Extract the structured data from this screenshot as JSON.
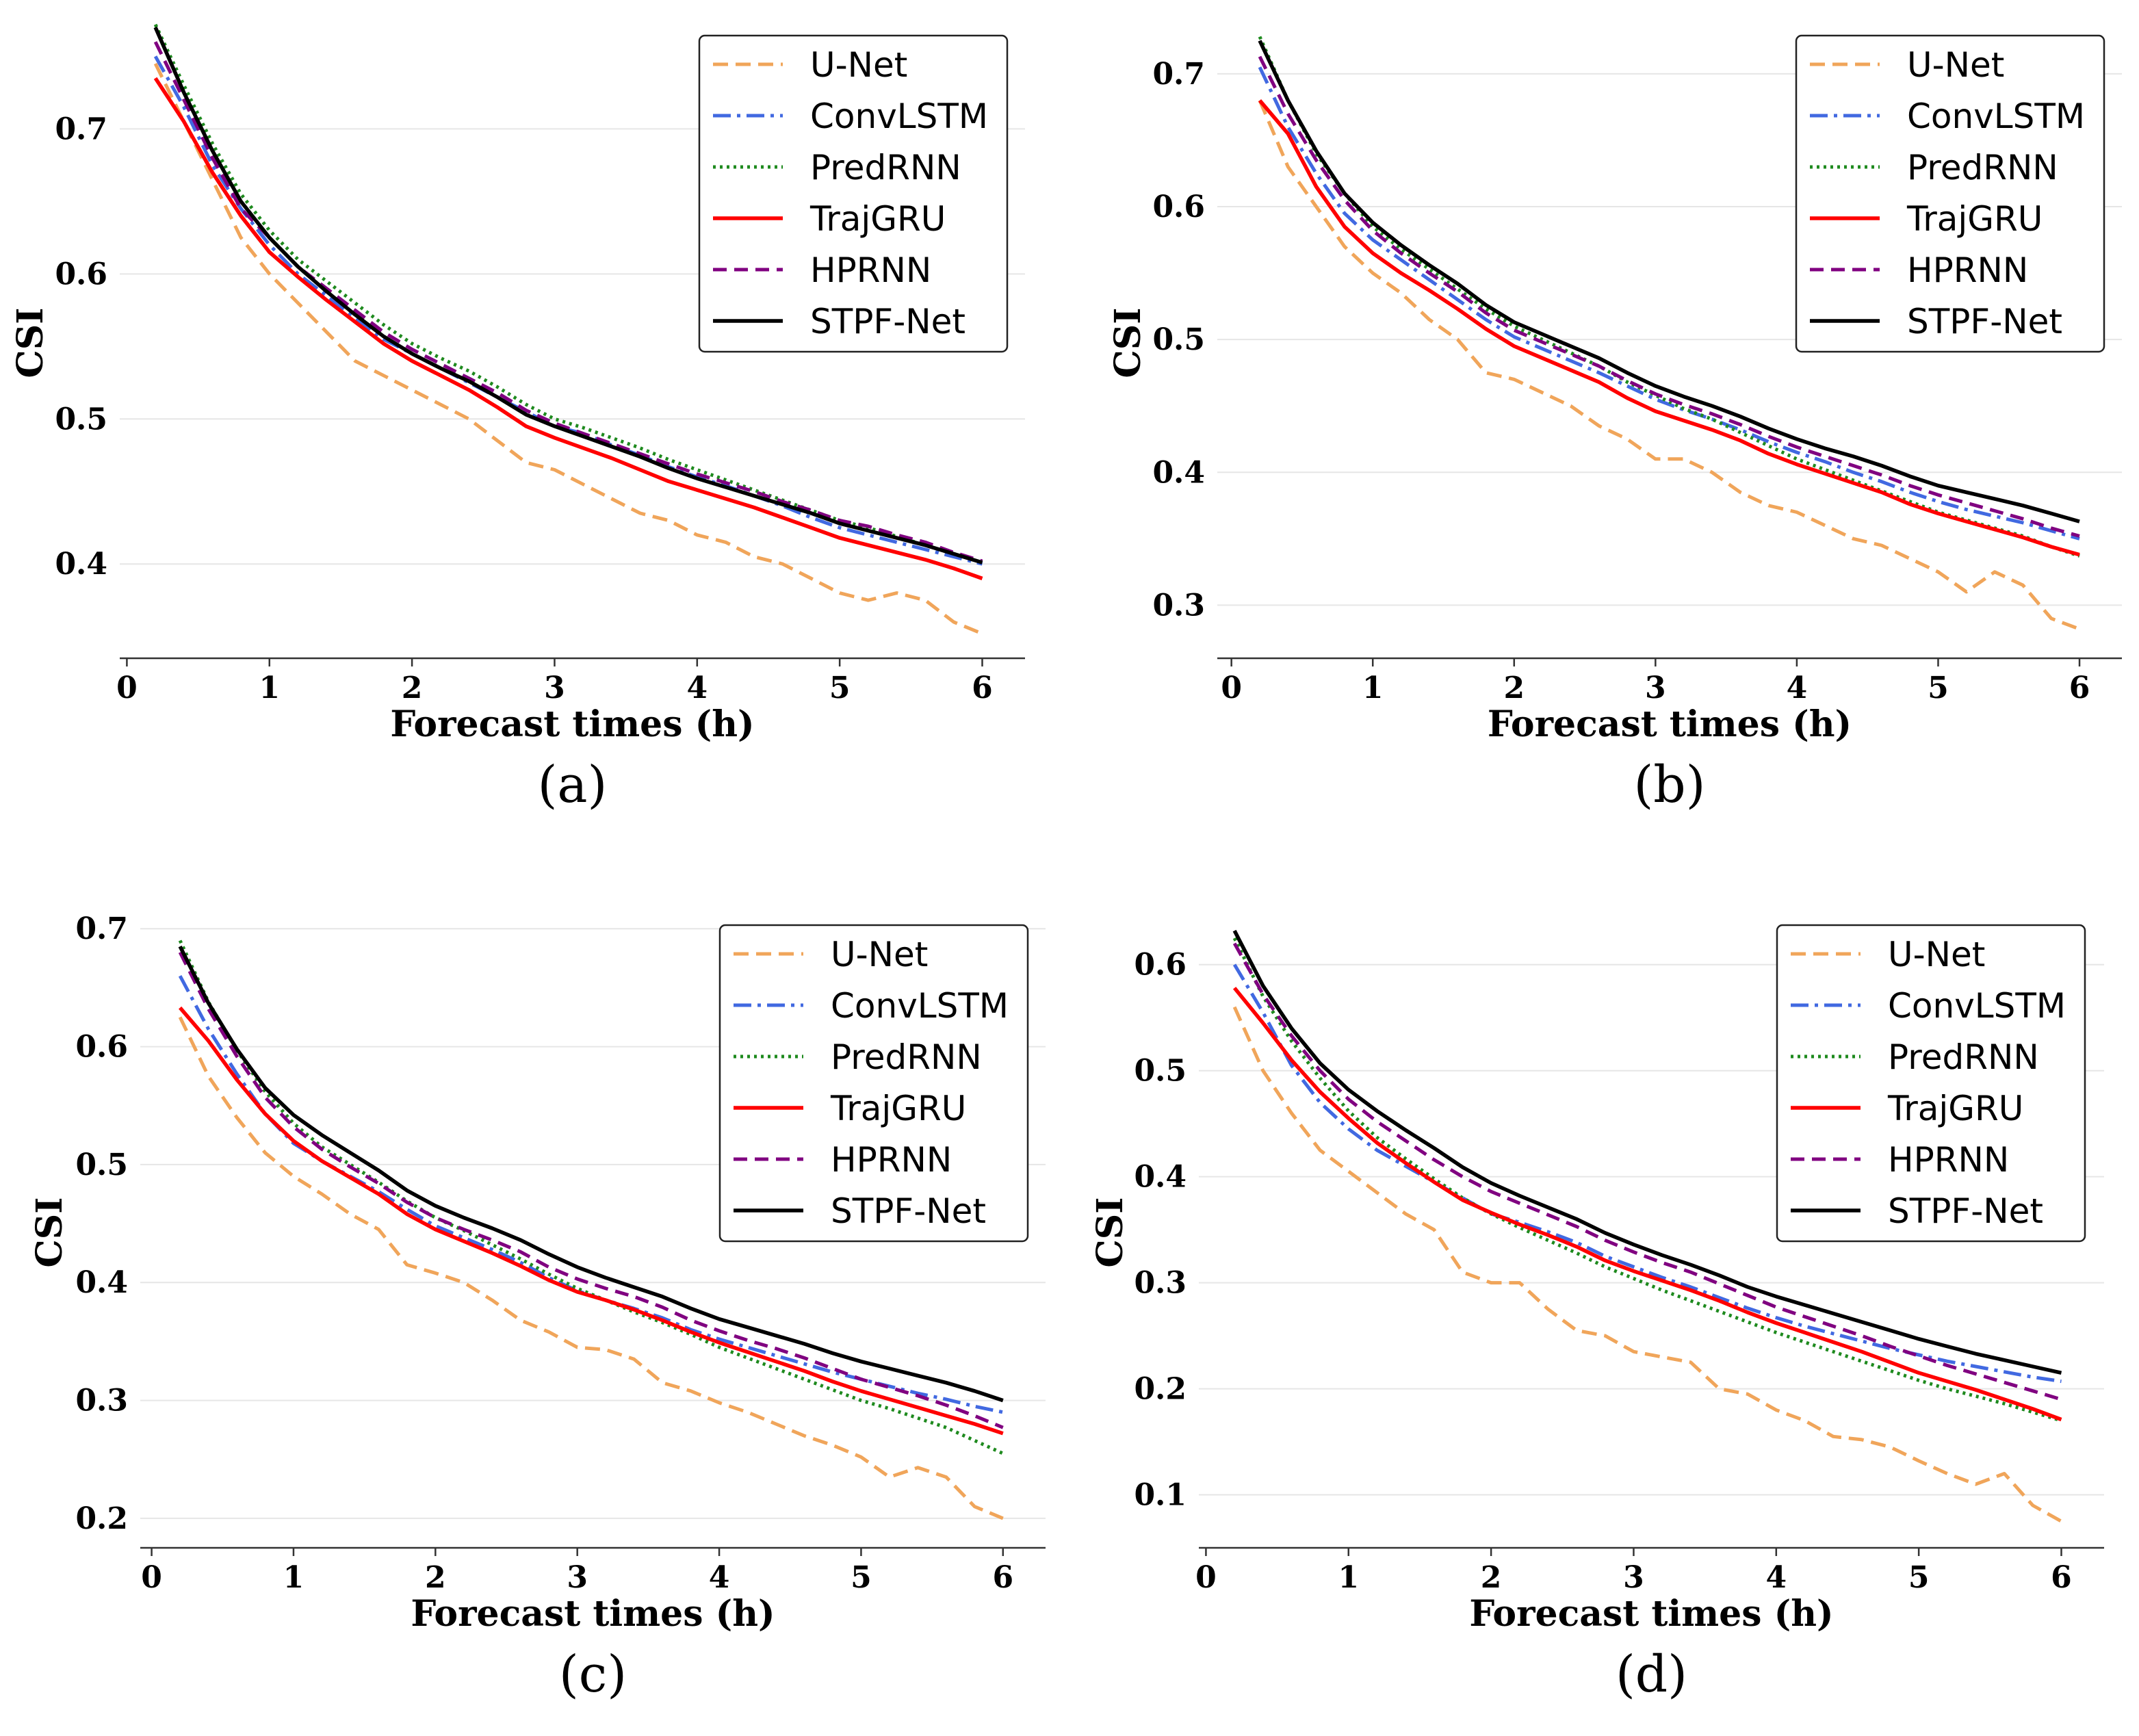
{
  "colors": {
    "U-Net": "#f0a55a",
    "ConvLSTM": "#4169e1",
    "PredRNN": "#1e8a1e",
    "TrajGRU": "#ff0000",
    "HPRNN": "#800080",
    "STPF-Net": "#000000"
  },
  "chart_data": [
    {
      "type": "line",
      "caption": "(a)",
      "xlabel": "Forecast times (h)",
      "ylabel": "CSI",
      "xlim": [
        -0.05,
        6.3
      ],
      "ylim": [
        0.335,
        0.77
      ],
      "xticks": [
        "0",
        "1",
        "2",
        "3",
        "4",
        "5",
        "6"
      ],
      "yticks": [
        "0.4",
        "0.5",
        "0.6",
        "0.7"
      ],
      "legend_position": "top-right",
      "x": [
        0.2,
        0.4,
        0.6,
        0.8,
        1.0,
        1.2,
        1.4,
        1.6,
        1.8,
        2.0,
        2.2,
        2.4,
        2.6,
        2.8,
        3.0,
        3.2,
        3.4,
        3.6,
        3.8,
        4.0,
        4.2,
        4.4,
        4.6,
        4.8,
        5.0,
        5.2,
        5.4,
        5.6,
        5.8,
        6.0
      ],
      "series": [
        {
          "name": "U-Net",
          "values": [
            0.745,
            0.705,
            0.665,
            0.625,
            0.6,
            0.58,
            0.56,
            0.54,
            0.53,
            0.52,
            0.51,
            0.5,
            0.485,
            0.47,
            0.465,
            0.455,
            0.445,
            0.435,
            0.43,
            0.42,
            0.415,
            0.405,
            0.4,
            0.39,
            0.38,
            0.375,
            0.38,
            0.375,
            0.36,
            0.352
          ]
        },
        {
          "name": "ConvLSTM",
          "values": [
            0.75,
            0.715,
            0.675,
            0.645,
            0.62,
            0.6,
            0.585,
            0.57,
            0.555,
            0.545,
            0.535,
            0.525,
            0.515,
            0.505,
            0.495,
            0.49,
            0.482,
            0.475,
            0.467,
            0.46,
            0.454,
            0.447,
            0.44,
            0.432,
            0.425,
            0.42,
            0.415,
            0.41,
            0.405,
            0.4
          ]
        },
        {
          "name": "PredRNN",
          "values": [
            0.772,
            0.73,
            0.69,
            0.655,
            0.63,
            0.61,
            0.595,
            0.58,
            0.565,
            0.552,
            0.542,
            0.533,
            0.522,
            0.51,
            0.5,
            0.494,
            0.487,
            0.48,
            0.472,
            0.465,
            0.458,
            0.451,
            0.444,
            0.437,
            0.43,
            0.425,
            0.419,
            0.413,
            0.407,
            0.401
          ]
        },
        {
          "name": "TrajGRU",
          "values": [
            0.735,
            0.705,
            0.67,
            0.64,
            0.615,
            0.598,
            0.582,
            0.567,
            0.552,
            0.54,
            0.53,
            0.52,
            0.508,
            0.495,
            0.487,
            0.48,
            0.473,
            0.465,
            0.457,
            0.451,
            0.445,
            0.439,
            0.432,
            0.425,
            0.418,
            0.413,
            0.408,
            0.403,
            0.397,
            0.39
          ]
        },
        {
          "name": "HPRNN",
          "values": [
            0.76,
            0.72,
            0.68,
            0.645,
            0.625,
            0.605,
            0.59,
            0.575,
            0.56,
            0.548,
            0.538,
            0.528,
            0.518,
            0.506,
            0.497,
            0.49,
            0.483,
            0.476,
            0.469,
            0.462,
            0.456,
            0.45,
            0.443,
            0.437,
            0.43,
            0.426,
            0.42,
            0.415,
            0.408,
            0.402
          ]
        },
        {
          "name": "STPF-Net",
          "values": [
            0.77,
            0.725,
            0.685,
            0.65,
            0.625,
            0.605,
            0.588,
            0.572,
            0.557,
            0.545,
            0.535,
            0.526,
            0.515,
            0.503,
            0.495,
            0.488,
            0.481,
            0.474,
            0.466,
            0.459,
            0.453,
            0.447,
            0.441,
            0.435,
            0.428,
            0.423,
            0.418,
            0.413,
            0.407,
            0.401
          ]
        }
      ]
    },
    {
      "type": "line",
      "caption": "(b)",
      "xlabel": "Forecast times (h)",
      "ylabel": "CSI",
      "xlim": [
        -0.1,
        6.3
      ],
      "ylim": [
        0.26,
        0.735
      ],
      "xticks": [
        "0",
        "1",
        "2",
        "3",
        "4",
        "5",
        "6"
      ],
      "yticks": [
        "0.3",
        "0.4",
        "0.5",
        "0.6",
        "0.7"
      ],
      "legend_position": "top-right",
      "x": [
        0.2,
        0.4,
        0.6,
        0.8,
        1.0,
        1.2,
        1.4,
        1.6,
        1.8,
        2.0,
        2.2,
        2.4,
        2.6,
        2.8,
        3.0,
        3.2,
        3.4,
        3.6,
        3.8,
        4.0,
        4.2,
        4.4,
        4.6,
        4.8,
        5.0,
        5.2,
        5.4,
        5.6,
        5.8,
        6.0
      ],
      "series": [
        {
          "name": "U-Net",
          "values": [
            0.68,
            0.63,
            0.6,
            0.57,
            0.55,
            0.535,
            0.515,
            0.5,
            0.475,
            0.47,
            0.46,
            0.45,
            0.435,
            0.425,
            0.41,
            0.41,
            0.4,
            0.385,
            0.375,
            0.37,
            0.36,
            0.35,
            0.345,
            0.335,
            0.325,
            0.31,
            0.325,
            0.315,
            0.29,
            0.282
          ]
        },
        {
          "name": "ConvLSTM",
          "values": [
            0.705,
            0.66,
            0.625,
            0.595,
            0.575,
            0.56,
            0.545,
            0.53,
            0.515,
            0.502,
            0.493,
            0.484,
            0.475,
            0.465,
            0.455,
            0.447,
            0.44,
            0.432,
            0.423,
            0.415,
            0.408,
            0.4,
            0.393,
            0.385,
            0.378,
            0.372,
            0.367,
            0.362,
            0.356,
            0.35
          ]
        },
        {
          "name": "PredRNN",
          "values": [
            0.728,
            0.68,
            0.64,
            0.61,
            0.585,
            0.568,
            0.553,
            0.538,
            0.523,
            0.51,
            0.5,
            0.49,
            0.48,
            0.468,
            0.458,
            0.448,
            0.44,
            0.43,
            0.42,
            0.41,
            0.402,
            0.394,
            0.386,
            0.378,
            0.37,
            0.364,
            0.358,
            0.352,
            0.344,
            0.337
          ]
        },
        {
          "name": "TrajGRU",
          "values": [
            0.68,
            0.655,
            0.615,
            0.585,
            0.565,
            0.55,
            0.537,
            0.523,
            0.508,
            0.495,
            0.486,
            0.477,
            0.468,
            0.456,
            0.446,
            0.439,
            0.432,
            0.424,
            0.414,
            0.406,
            0.399,
            0.392,
            0.385,
            0.376,
            0.369,
            0.363,
            0.357,
            0.351,
            0.344,
            0.338
          ]
        },
        {
          "name": "HPRNN",
          "values": [
            0.713,
            0.67,
            0.635,
            0.605,
            0.582,
            0.565,
            0.55,
            0.536,
            0.52,
            0.507,
            0.498,
            0.489,
            0.48,
            0.469,
            0.459,
            0.451,
            0.444,
            0.436,
            0.427,
            0.419,
            0.412,
            0.405,
            0.398,
            0.39,
            0.383,
            0.377,
            0.371,
            0.365,
            0.358,
            0.352
          ]
        },
        {
          "name": "STPF-Net",
          "values": [
            0.725,
            0.68,
            0.642,
            0.61,
            0.588,
            0.571,
            0.556,
            0.542,
            0.526,
            0.513,
            0.504,
            0.495,
            0.486,
            0.475,
            0.465,
            0.457,
            0.45,
            0.442,
            0.433,
            0.425,
            0.418,
            0.412,
            0.405,
            0.397,
            0.39,
            0.385,
            0.38,
            0.375,
            0.369,
            0.363
          ]
        }
      ]
    },
    {
      "type": "line",
      "caption": "(c)",
      "xlabel": "Forecast times (h)",
      "ylabel": "CSI",
      "xlim": [
        -0.08,
        6.3
      ],
      "ylim": [
        0.175,
        0.71
      ],
      "xticks": [
        "0",
        "1",
        "2",
        "3",
        "4",
        "5",
        "6"
      ],
      "yticks": [
        "0.2",
        "0.3",
        "0.4",
        "0.5",
        "0.6",
        "0.7"
      ],
      "legend_position": "top-right",
      "x": [
        0.2,
        0.4,
        0.6,
        0.8,
        1.0,
        1.2,
        1.4,
        1.6,
        1.8,
        2.0,
        2.2,
        2.4,
        2.6,
        2.8,
        3.0,
        3.2,
        3.4,
        3.6,
        3.8,
        4.0,
        4.2,
        4.4,
        4.6,
        4.8,
        5.0,
        5.2,
        5.4,
        5.6,
        5.8,
        6.0
      ],
      "series": [
        {
          "name": "U-Net",
          "values": [
            0.625,
            0.575,
            0.54,
            0.51,
            0.49,
            0.475,
            0.458,
            0.445,
            0.415,
            0.408,
            0.4,
            0.385,
            0.368,
            0.358,
            0.345,
            0.343,
            0.335,
            0.315,
            0.308,
            0.298,
            0.29,
            0.28,
            0.27,
            0.262,
            0.252,
            0.235,
            0.243,
            0.235,
            0.21,
            0.2
          ]
        },
        {
          "name": "ConvLSTM",
          "values": [
            0.66,
            0.615,
            0.577,
            0.543,
            0.518,
            0.503,
            0.49,
            0.477,
            0.462,
            0.448,
            0.438,
            0.428,
            0.417,
            0.404,
            0.393,
            0.385,
            0.378,
            0.37,
            0.36,
            0.352,
            0.345,
            0.338,
            0.331,
            0.324,
            0.318,
            0.312,
            0.306,
            0.301,
            0.295,
            0.29
          ]
        },
        {
          "name": "PredRNN",
          "values": [
            0.69,
            0.638,
            0.597,
            0.562,
            0.535,
            0.515,
            0.5,
            0.485,
            0.469,
            0.455,
            0.444,
            0.432,
            0.42,
            0.407,
            0.395,
            0.385,
            0.375,
            0.366,
            0.356,
            0.345,
            0.336,
            0.327,
            0.318,
            0.309,
            0.3,
            0.293,
            0.285,
            0.277,
            0.266,
            0.255
          ]
        },
        {
          "name": "TrajGRU",
          "values": [
            0.633,
            0.605,
            0.572,
            0.543,
            0.52,
            0.503,
            0.489,
            0.475,
            0.458,
            0.445,
            0.435,
            0.425,
            0.414,
            0.402,
            0.392,
            0.385,
            0.377,
            0.368,
            0.358,
            0.349,
            0.341,
            0.333,
            0.325,
            0.316,
            0.308,
            0.301,
            0.294,
            0.287,
            0.28,
            0.272
          ]
        },
        {
          "name": "HPRNN",
          "values": [
            0.68,
            0.632,
            0.592,
            0.557,
            0.532,
            0.513,
            0.498,
            0.484,
            0.468,
            0.455,
            0.445,
            0.436,
            0.426,
            0.413,
            0.403,
            0.395,
            0.388,
            0.379,
            0.368,
            0.359,
            0.351,
            0.344,
            0.336,
            0.327,
            0.318,
            0.311,
            0.304,
            0.296,
            0.287,
            0.277
          ]
        },
        {
          "name": "STPF-Net",
          "values": [
            0.685,
            0.637,
            0.598,
            0.565,
            0.542,
            0.525,
            0.51,
            0.495,
            0.478,
            0.465,
            0.455,
            0.446,
            0.436,
            0.424,
            0.413,
            0.404,
            0.396,
            0.388,
            0.378,
            0.369,
            0.362,
            0.355,
            0.348,
            0.34,
            0.333,
            0.327,
            0.321,
            0.315,
            0.308,
            0.3
          ]
        }
      ]
    },
    {
      "type": "line",
      "caption": "(d)",
      "xlabel": "Forecast times (h)",
      "ylabel": "CSI",
      "xlim": [
        -0.05,
        6.3
      ],
      "ylim": [
        0.05,
        0.645
      ],
      "xticks": [
        "0",
        "1",
        "2",
        "3",
        "4",
        "5",
        "6"
      ],
      "yticks": [
        "0.1",
        "0.2",
        "0.3",
        "0.4",
        "0.5",
        "0.6"
      ],
      "legend_position": "top-right",
      "x": [
        0.2,
        0.4,
        0.6,
        0.8,
        1.0,
        1.2,
        1.4,
        1.6,
        1.8,
        2.0,
        2.2,
        2.4,
        2.6,
        2.8,
        3.0,
        3.2,
        3.4,
        3.6,
        3.8,
        4.0,
        4.2,
        4.4,
        4.6,
        4.8,
        5.0,
        5.2,
        5.4,
        5.6,
        5.8,
        6.0
      ],
      "series": [
        {
          "name": "U-Net",
          "values": [
            0.56,
            0.5,
            0.46,
            0.425,
            0.405,
            0.385,
            0.365,
            0.35,
            0.31,
            0.3,
            0.3,
            0.275,
            0.255,
            0.25,
            0.235,
            0.23,
            0.225,
            0.2,
            0.195,
            0.18,
            0.17,
            0.155,
            0.152,
            0.145,
            0.132,
            0.12,
            0.11,
            0.12,
            0.09,
            0.075
          ]
        },
        {
          "name": "ConvLSTM",
          "values": [
            0.6,
            0.555,
            0.505,
            0.47,
            0.445,
            0.425,
            0.41,
            0.395,
            0.38,
            0.365,
            0.357,
            0.348,
            0.338,
            0.325,
            0.315,
            0.305,
            0.296,
            0.286,
            0.276,
            0.267,
            0.259,
            0.252,
            0.245,
            0.238,
            0.232,
            0.226,
            0.221,
            0.216,
            0.211,
            0.207
          ]
        },
        {
          "name": "PredRNN",
          "values": [
            0.625,
            0.57,
            0.528,
            0.493,
            0.462,
            0.437,
            0.417,
            0.398,
            0.38,
            0.365,
            0.352,
            0.34,
            0.328,
            0.315,
            0.304,
            0.293,
            0.283,
            0.273,
            0.263,
            0.253,
            0.244,
            0.235,
            0.226,
            0.217,
            0.208,
            0.2,
            0.193,
            0.186,
            0.178,
            0.17
          ]
        },
        {
          "name": "TrajGRU",
          "values": [
            0.578,
            0.545,
            0.51,
            0.48,
            0.455,
            0.432,
            0.413,
            0.395,
            0.378,
            0.366,
            0.355,
            0.345,
            0.334,
            0.321,
            0.311,
            0.302,
            0.293,
            0.283,
            0.272,
            0.262,
            0.253,
            0.244,
            0.235,
            0.225,
            0.215,
            0.207,
            0.199,
            0.19,
            0.181,
            0.171
          ]
        },
        {
          "name": "HPRNN",
          "values": [
            0.62,
            0.572,
            0.533,
            0.5,
            0.473,
            0.452,
            0.434,
            0.416,
            0.4,
            0.386,
            0.375,
            0.364,
            0.353,
            0.34,
            0.329,
            0.319,
            0.31,
            0.299,
            0.288,
            0.277,
            0.268,
            0.259,
            0.25,
            0.24,
            0.231,
            0.222,
            0.214,
            0.206,
            0.198,
            0.19
          ]
        },
        {
          "name": "STPF-Net",
          "values": [
            0.632,
            0.58,
            0.54,
            0.507,
            0.482,
            0.462,
            0.444,
            0.427,
            0.409,
            0.394,
            0.382,
            0.371,
            0.36,
            0.347,
            0.336,
            0.326,
            0.317,
            0.307,
            0.296,
            0.287,
            0.279,
            0.271,
            0.263,
            0.255,
            0.247,
            0.24,
            0.233,
            0.227,
            0.221,
            0.215
          ]
        }
      ]
    }
  ]
}
